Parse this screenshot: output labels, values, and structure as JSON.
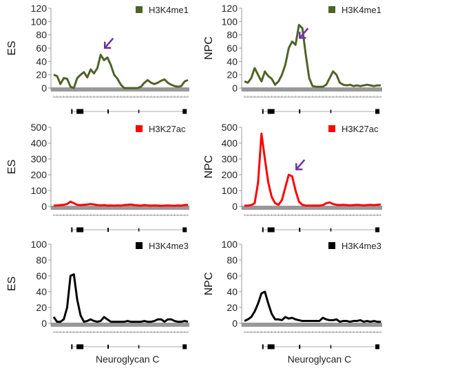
{
  "chart_data": [
    {
      "type": "line",
      "ylabel": "ES",
      "legend": "H3K4me1",
      "color": "#4f6228",
      "ylim": [
        0,
        120
      ],
      "yticks": [
        0,
        20,
        40,
        60,
        80,
        100,
        120
      ],
      "arrow_at": 14,
      "values": [
        20,
        18,
        6,
        15,
        14,
        2,
        0,
        15,
        20,
        24,
        16,
        28,
        22,
        30,
        50,
        42,
        46,
        35,
        20,
        14,
        5,
        0,
        0,
        0,
        0,
        0,
        2,
        8,
        12,
        8,
        6,
        8,
        11,
        13,
        8,
        5,
        3,
        2,
        3,
        10,
        12
      ]
    },
    {
      "type": "line",
      "ylabel": "NPC",
      "legend": "H3K4me1",
      "color": "#4f6228",
      "ylim": [
        0,
        120
      ],
      "yticks": [
        0,
        20,
        40,
        60,
        80,
        100,
        120
      ],
      "arrow_at": 15,
      "values": [
        10,
        8,
        15,
        30,
        20,
        10,
        25,
        18,
        14,
        5,
        10,
        20,
        35,
        60,
        70,
        65,
        95,
        90,
        50,
        15,
        3,
        2,
        2,
        2,
        5,
        15,
        25,
        20,
        8,
        5,
        4,
        5,
        3,
        4,
        3,
        4,
        5,
        4,
        3,
        4,
        4
      ]
    },
    {
      "type": "line",
      "ylabel": "ES",
      "legend": "H3K27ac",
      "color": "#ff0000",
      "ylim": [
        0,
        500
      ],
      "yticks": [
        0,
        100,
        200,
        300,
        400,
        500
      ],
      "values": [
        5,
        6,
        8,
        10,
        15,
        30,
        20,
        10,
        8,
        10,
        12,
        15,
        12,
        8,
        6,
        8,
        5,
        6,
        5,
        6,
        5,
        8,
        10,
        12,
        8,
        6,
        5,
        8,
        6,
        5,
        6,
        5,
        4,
        5,
        6,
        5,
        4,
        6,
        5,
        8,
        10
      ]
    },
    {
      "type": "line",
      "ylabel": "NPC",
      "legend": "H3K27ac",
      "color": "#ff0000",
      "ylim": [
        0,
        500
      ],
      "yticks": [
        0,
        100,
        200,
        300,
        400,
        500
      ],
      "arrow_at": 14,
      "values": [
        5,
        5,
        8,
        20,
        150,
        460,
        300,
        150,
        60,
        20,
        10,
        40,
        120,
        200,
        190,
        100,
        30,
        10,
        5,
        5,
        5,
        5,
        5,
        8,
        20,
        25,
        15,
        10,
        8,
        10,
        8,
        6,
        8,
        10,
        8,
        6,
        8,
        10,
        8,
        10,
        12
      ]
    },
    {
      "type": "line",
      "ylabel": "ES",
      "legend": "H3K4me3",
      "color": "#000000",
      "ylim": [
        0,
        100
      ],
      "yticks": [
        0,
        20,
        40,
        60,
        80,
        100
      ],
      "gene_label": "Neuroglycan C",
      "values": [
        8,
        2,
        2,
        5,
        20,
        60,
        62,
        30,
        10,
        2,
        3,
        5,
        3,
        2,
        3,
        8,
        5,
        2,
        2,
        2,
        2,
        2,
        3,
        2,
        2,
        2,
        2,
        3,
        2,
        2,
        3,
        5,
        5,
        2,
        5,
        5,
        3,
        2,
        2,
        3,
        2
      ]
    },
    {
      "type": "line",
      "ylabel": "NPC",
      "legend": "H3K4me3",
      "color": "#000000",
      "ylim": [
        0,
        100
      ],
      "yticks": [
        0,
        20,
        40,
        60,
        80,
        100
      ],
      "gene_label": "Neuroglycan C",
      "values": [
        3,
        5,
        8,
        15,
        25,
        38,
        40,
        25,
        12,
        5,
        5,
        4,
        8,
        6,
        7,
        5,
        4,
        3,
        3,
        3,
        3,
        3,
        3,
        7,
        5,
        4,
        4,
        5,
        2,
        3,
        3,
        2,
        3,
        3,
        4,
        2,
        3,
        2,
        3,
        2,
        2
      ]
    }
  ]
}
